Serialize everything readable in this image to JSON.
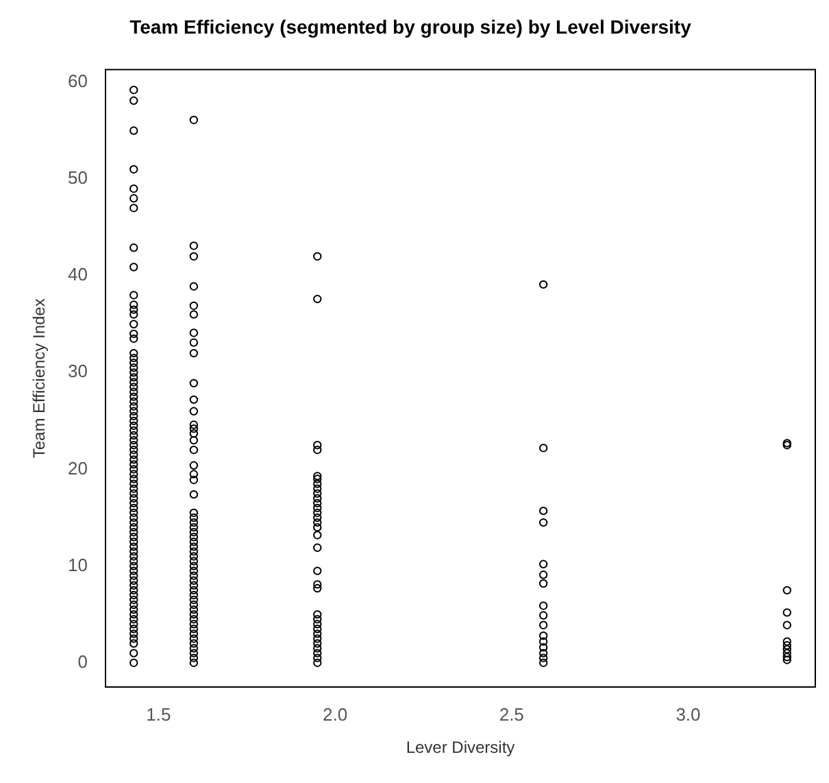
{
  "chart_data": {
    "type": "scatter",
    "title": "Team Efficiency (segmented by group size) by Level Diversity",
    "xlabel": "Lever Diversity",
    "ylabel": "Team Efficiency Index",
    "color": "#000000",
    "marker": "circle",
    "grid": false,
    "xlim": [
      1.35,
      3.36
    ],
    "ylim": [
      -2.5,
      61.3
    ],
    "xticks": [
      1.5,
      {
        "value": 2,
        "label": "2.0"
      },
      2.5,
      {
        "value": 3,
        "label": "3.0"
      }
    ],
    "yticks": [
      0,
      10,
      20,
      30,
      40,
      50,
      60
    ],
    "x": [
      1.43,
      1.43,
      1.43,
      1.43,
      1.43,
      1.43,
      1.43,
      1.43,
      1.43,
      1.43,
      1.43,
      1.43,
      1.43,
      1.43,
      1.43,
      1.43,
      1.43,
      1.43,
      1.43,
      1.43,
      1.43,
      1.43,
      1.43,
      1.43,
      1.43,
      1.43,
      1.43,
      1.43,
      1.43,
      1.43,
      1.43,
      1.43,
      1.43,
      1.43,
      1.43,
      1.43,
      1.43,
      1.43,
      1.43,
      1.43,
      1.43,
      1.43,
      1.43,
      1.43,
      1.43,
      1.43,
      1.43,
      1.43,
      1.43,
      1.43,
      1.43,
      1.43,
      1.43,
      1.43,
      1.43,
      1.43,
      1.43,
      1.43,
      1.43,
      1.43,
      1.43,
      1.43,
      1.43,
      1.43,
      1.43,
      1.43,
      1.43,
      1.43,
      1.43,
      1.43,
      1.43,
      1.43,
      1.43,
      1.43,
      1.43,
      1.43,
      1.43,
      1.43,
      1.43,
      1.6,
      1.6,
      1.6,
      1.6,
      1.6,
      1.6,
      1.6,
      1.6,
      1.6,
      1.6,
      1.6,
      1.6,
      1.6,
      1.6,
      1.6,
      1.6,
      1.6,
      1.6,
      1.6,
      1.6,
      1.6,
      1.6,
      1.6,
      1.6,
      1.6,
      1.6,
      1.6,
      1.6,
      1.6,
      1.6,
      1.6,
      1.6,
      1.6,
      1.6,
      1.6,
      1.6,
      1.6,
      1.6,
      1.6,
      1.6,
      1.6,
      1.6,
      1.6,
      1.6,
      1.6,
      1.6,
      1.6,
      1.6,
      1.6,
      1.6,
      1.6,
      1.6,
      1.6,
      1.95,
      1.95,
      1.95,
      1.95,
      1.95,
      1.95,
      1.95,
      1.95,
      1.95,
      1.95,
      1.95,
      1.95,
      1.95,
      1.95,
      1.95,
      1.95,
      1.95,
      1.95,
      1.95,
      1.95,
      1.95,
      1.95,
      1.95,
      1.95,
      1.95,
      1.95,
      1.95,
      1.95,
      1.95,
      1.95,
      1.95,
      1.95,
      2.59,
      2.59,
      2.59,
      2.59,
      2.59,
      2.59,
      2.59,
      2.59,
      2.59,
      2.59,
      2.59,
      2.59,
      2.59,
      2.59,
      2.59,
      2.59,
      3.28,
      3.28,
      3.28,
      3.28,
      3.28,
      3.28,
      3.28,
      3.28,
      3.28,
      3.28,
      3.28
    ],
    "values": [
      59.2,
      58.1,
      55,
      51,
      49,
      48,
      47,
      42.9,
      40.9,
      38,
      37,
      36.5,
      36,
      35,
      34,
      33.5,
      32,
      31.5,
      31,
      30.5,
      30,
      29.5,
      29,
      28.5,
      28,
      27.5,
      27,
      26.5,
      26,
      25.5,
      25,
      24.5,
      24,
      23.5,
      23,
      22.5,
      22,
      21.5,
      21,
      20.5,
      20,
      19.5,
      19,
      18.5,
      18,
      17.5,
      17,
      16.5,
      16,
      15.5,
      15,
      14.5,
      14,
      13.5,
      13,
      12.5,
      12,
      11.5,
      11,
      10.5,
      10,
      9.5,
      9,
      8.5,
      8,
      7.5,
      7,
      6.5,
      6,
      5.5,
      5,
      4.5,
      4,
      3.5,
      3,
      2.5,
      2,
      1,
      0,
      56.1,
      43.1,
      42,
      38.9,
      36.9,
      36,
      34.1,
      33.1,
      32,
      28.9,
      27.2,
      26,
      24.6,
      24.2,
      23.7,
      23,
      22,
      20.4,
      19.5,
      18.9,
      17.4,
      15.5,
      15,
      14.5,
      14,
      13.5,
      13,
      12.5,
      12,
      11.5,
      11,
      10.5,
      10,
      9.5,
      9,
      8.5,
      8,
      7.5,
      7,
      6.5,
      6,
      5.5,
      5,
      4.5,
      4,
      3.5,
      3,
      2.5,
      2,
      1.5,
      1,
      0.5,
      0,
      42,
      37.6,
      22.5,
      22,
      19.3,
      19,
      18.5,
      18,
      17.5,
      17,
      16.5,
      16,
      15.5,
      15,
      14.5,
      14,
      13.2,
      11.9,
      9.5,
      8.1,
      7.7,
      5,
      4.5,
      4,
      3.5,
      3,
      2.5,
      2,
      1.5,
      1,
      0.5,
      0,
      39.1,
      22.2,
      15.7,
      14.5,
      10.2,
      9.1,
      8.2,
      5.9,
      4.9,
      3.9,
      2.8,
      2.2,
      1.6,
      1,
      0.5,
      0,
      22.7,
      22.5,
      7.5,
      5.2,
      3.9,
      2.2,
      1.8,
      1.4,
      1,
      0.6,
      0.3
    ]
  }
}
